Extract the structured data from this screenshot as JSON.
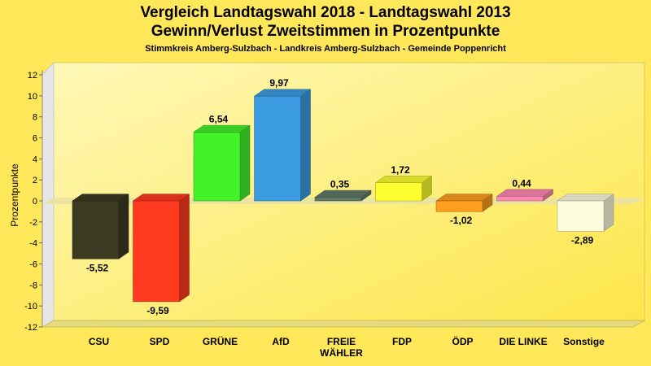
{
  "title_line1": "Vergleich Landtagswahl 2018 - Landtagswahl 2013",
  "title_line2": "Gewinn/Verlust Zweitstimmen in Prozentpunkte",
  "subtitle": "Stimmkreis Amberg-Sulzbach - Landkreis Amberg-Sulzbach - Gemeinde Poppenricht",
  "colors": {
    "background": "#ffe75a",
    "plot_light": "#fff7b0",
    "plot_dark": "#fde84a",
    "zero_plane": "#e8e0a0"
  },
  "chart_data": {
    "type": "bar",
    "title": "Vergleich Landtagswahl 2018 - Landtagswahl 2013",
    "subtitle": "Gewinn/Verlust Zweitstimmen in Prozentpunkte",
    "xlabel": "",
    "ylabel": "Prozentpunkte",
    "ylim": [
      -12,
      12
    ],
    "yticks": [
      12,
      10,
      8,
      6,
      4,
      2,
      0,
      -2,
      -4,
      -6,
      -8,
      -10,
      -12
    ],
    "grid": false,
    "categories": [
      [
        "CSU"
      ],
      [
        "SPD"
      ],
      [
        "GRÜNE"
      ],
      [
        "AfD"
      ],
      [
        "FREIE",
        "WÄHLER"
      ],
      [
        "FDP"
      ],
      [
        "ÖDP"
      ],
      [
        "DIE LINKE"
      ],
      [
        "Sonstige"
      ]
    ],
    "values": [
      -5.52,
      -9.59,
      6.54,
      9.97,
      0.35,
      1.72,
      -1.02,
      0.44,
      -2.89
    ],
    "value_labels": [
      "-5,52",
      "-9,59",
      "6,54",
      "9,97",
      "0,35",
      "1,72",
      "-1,02",
      "0,44",
      "-2,89"
    ],
    "bar_colors": [
      "#3d3a22",
      "#ff3a1e",
      "#44f22a",
      "#3d9de2",
      "#5f7a68",
      "#ffff30",
      "#ff9e1e",
      "#ff88b0",
      "#fffde0"
    ]
  }
}
